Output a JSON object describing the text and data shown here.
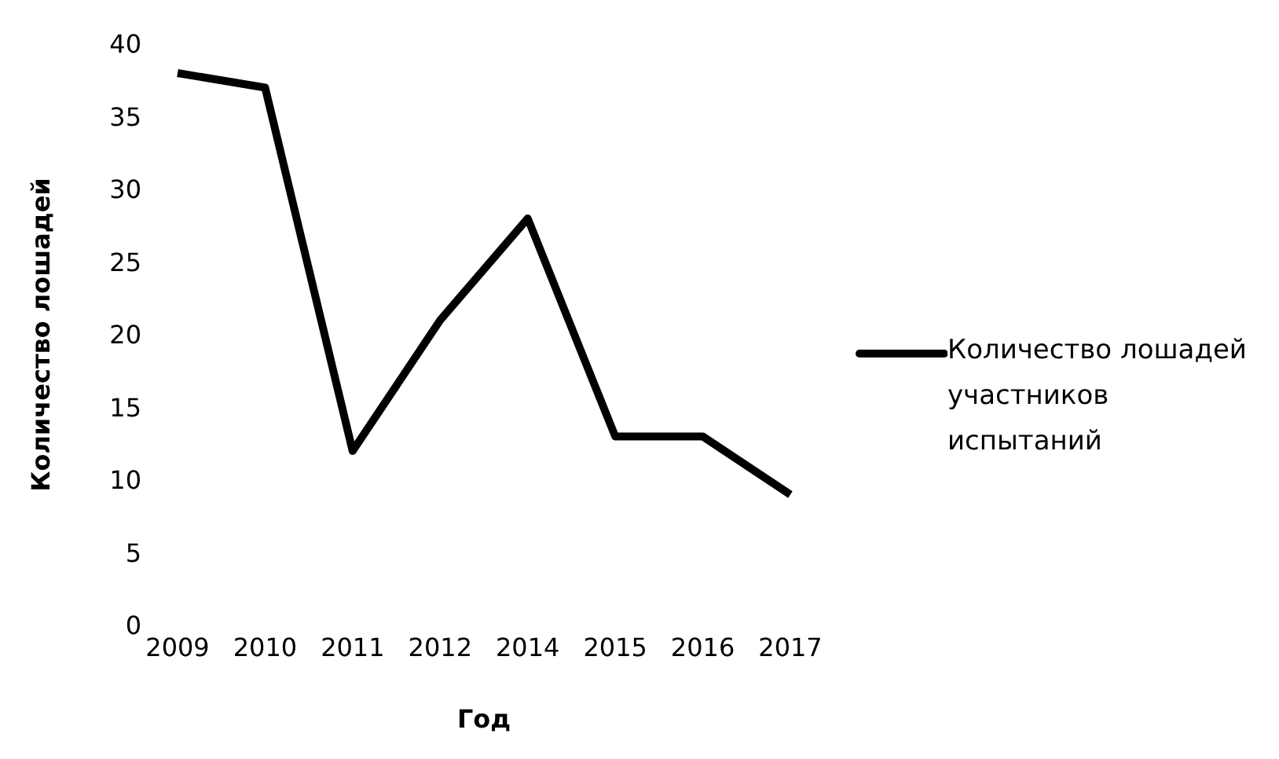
{
  "chart_data": {
    "type": "line",
    "xlabel": "Год",
    "ylabel": "Количество лошадей",
    "categories": [
      "2009",
      "2010",
      "2011",
      "2012",
      "2014",
      "2015",
      "2016",
      "2017"
    ],
    "series": [
      {
        "name": "Количество лошадей участников испытаний",
        "color": "#000000",
        "values": [
          38,
          37,
          12,
          21,
          28,
          13,
          13,
          9
        ]
      }
    ],
    "ylim": [
      0,
      40
    ],
    "yticks": [
      0,
      5,
      10,
      15,
      20,
      25,
      30,
      35,
      40
    ],
    "grid": false,
    "legend": "right",
    "marker": "none",
    "line_style": "solid"
  }
}
